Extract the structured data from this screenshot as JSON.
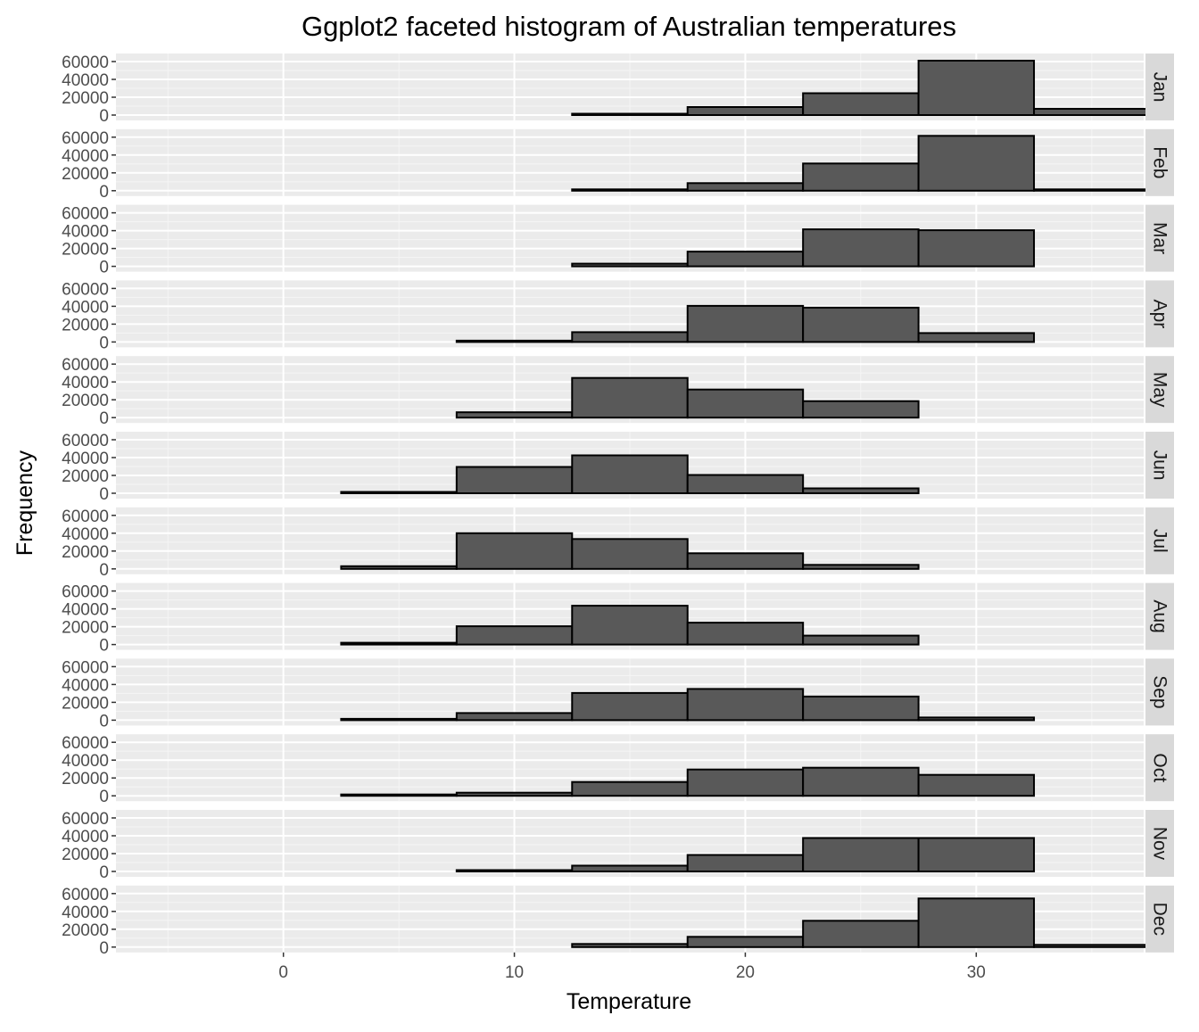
{
  "chart_data": {
    "type": "bar",
    "title": "Ggplot2 faceted histogram of Australian temperatures",
    "xlabel": "Temperature",
    "ylabel": "Frequency",
    "x_ticks": [
      0,
      10,
      20,
      30
    ],
    "y_ticks": [
      0,
      20000,
      40000,
      60000
    ],
    "xlim": [
      -7.25,
      37.25
    ],
    "ylim": [
      0,
      63000
    ],
    "bin_width": 5,
    "bin_centers": [
      0,
      5,
      10,
      15,
      20,
      25,
      30,
      35
    ],
    "bin_labels": [
      "-2.5–2.5",
      "2.5–7.5",
      "7.5–12.5",
      "12.5–17.5",
      "17.5–22.5",
      "22.5–27.5",
      "27.5–32.5",
      "32.5–37.5"
    ],
    "facets": [
      {
        "name": "Jan",
        "values": [
          0,
          0,
          0,
          1500,
          9000,
          24500,
          61000,
          7000
        ]
      },
      {
        "name": "Feb",
        "values": [
          0,
          0,
          0,
          1500,
          8500,
          30500,
          61500,
          1500
        ]
      },
      {
        "name": "Mar",
        "values": [
          0,
          0,
          0,
          3000,
          16500,
          41500,
          40500,
          0
        ]
      },
      {
        "name": "Apr",
        "values": [
          0,
          0,
          1500,
          11000,
          40500,
          38500,
          10000,
          0
        ]
      },
      {
        "name": "May",
        "values": [
          0,
          0,
          6000,
          44500,
          31500,
          18500,
          0,
          0
        ]
      },
      {
        "name": "Jun",
        "values": [
          0,
          1500,
          29500,
          42500,
          20500,
          5500,
          0,
          0
        ]
      },
      {
        "name": "Jul",
        "values": [
          0,
          3000,
          40000,
          33500,
          17500,
          4500,
          0,
          0
        ]
      },
      {
        "name": "Aug",
        "values": [
          0,
          2000,
          20500,
          43500,
          24500,
          10000,
          0,
          0
        ]
      },
      {
        "name": "Sep",
        "values": [
          0,
          1500,
          8000,
          30500,
          35000,
          26500,
          3000,
          0
        ]
      },
      {
        "name": "Oct",
        "values": [
          0,
          1500,
          3500,
          15500,
          29500,
          31500,
          23500,
          0
        ]
      },
      {
        "name": "Nov",
        "values": [
          0,
          0,
          1500,
          6500,
          18500,
          37500,
          37500,
          0
        ]
      },
      {
        "name": "Dec",
        "values": [
          0,
          0,
          0,
          3500,
          11500,
          29500,
          54500,
          2500
        ]
      }
    ],
    "colors": {
      "bar_fill": "#595959",
      "bar_outline": "#000000",
      "panel_bg": "#ebebeb",
      "grid_major": "#ffffff",
      "grid_minor": "#f5f5f5",
      "strip_bg": "#d9d9d9",
      "tick_text": "#4d4d4d"
    },
    "grid": true,
    "legend": "none"
  }
}
